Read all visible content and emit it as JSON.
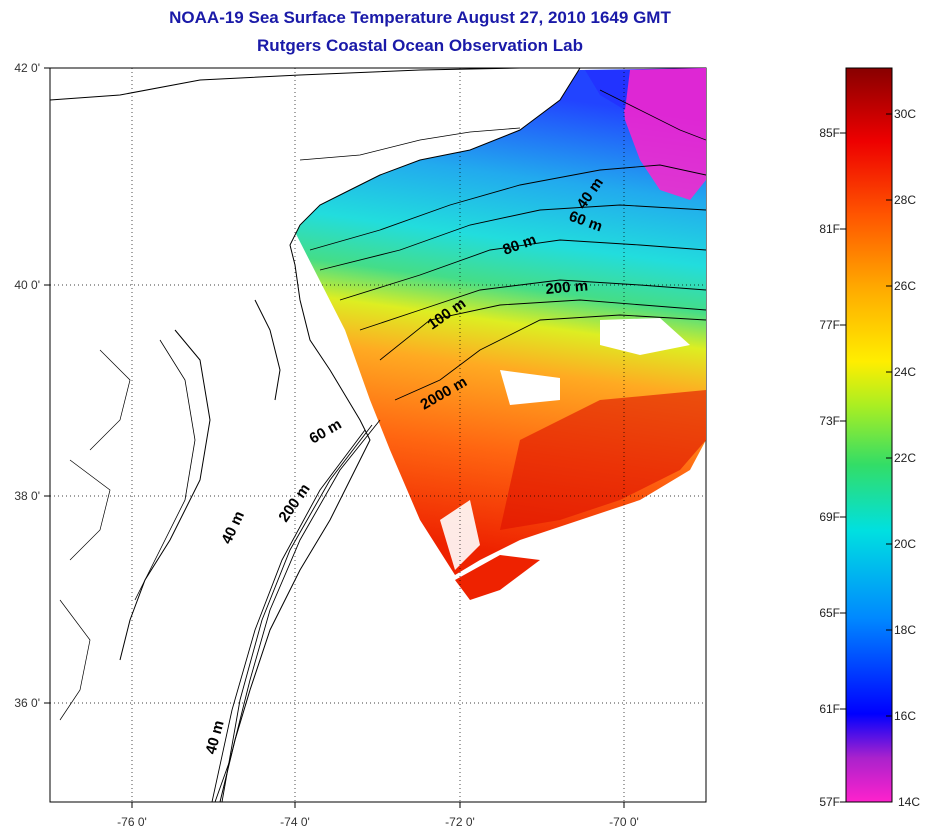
{
  "header": {
    "title": "NOAA-19 Sea Surface Temperature August 27, 2010 1649 GMT",
    "subtitle": "Rutgers Coastal Ocean Observation Lab"
  },
  "map": {
    "lat_labels": [
      "42 0'",
      "40 0'",
      "38 0'",
      "36 0'"
    ],
    "lon_labels": [
      "-76 0'",
      "-74 0'",
      "-72 0'",
      "-70 0'"
    ],
    "contour_labels": [
      "40 m",
      "60 m",
      "80 m",
      "200 m",
      "100 m",
      "2000 m",
      "60 m",
      "200 m",
      "40 m",
      "40 m"
    ],
    "cloud_color": "#ffffff",
    "land_color": "#ffffff"
  },
  "colorbar": {
    "fahrenheit": [
      "85F",
      "81F",
      "77F",
      "73F",
      "69F",
      "65F",
      "61F",
      "57F"
    ],
    "celsius": [
      "30C",
      "28C",
      "26C",
      "24C",
      "22C",
      "20C",
      "18C",
      "16C",
      "14C"
    ],
    "colors": [
      "#ff22cc",
      "#6622cc",
      "#0000ff",
      "#0088ff",
      "#00e0e0",
      "#33dd66",
      "#aaee22",
      "#ffee00",
      "#ffaa00",
      "#ff5500",
      "#ee0000",
      "#880000"
    ]
  }
}
